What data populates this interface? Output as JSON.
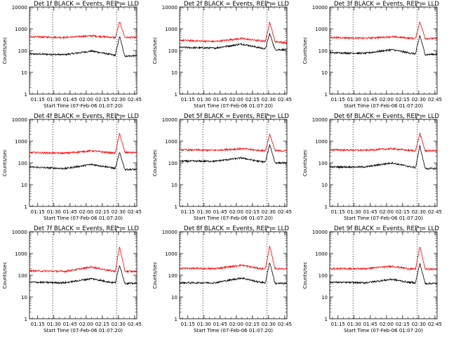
{
  "chart_data": [
    {
      "type": "line",
      "title": "Det 1f BLACK = Events, RED = LLD",
      "ylabel": "Counts/sec",
      "xlabel": "Start Time (07-Feb-06 01:07:20)",
      "x_ticks": [
        "01:15",
        "01:30",
        "01:45",
        "02:00",
        "02:15",
        "02:30",
        "02:45"
      ],
      "y_ticks": [
        "1",
        "10",
        "100",
        "1000",
        "10000"
      ],
      "y_scale": "log",
      "ylim": [
        1,
        10000
      ],
      "xlim": [
        "01:07:20",
        "02:47:00"
      ],
      "dotted_lines": [
        "01:29:00",
        "02:28:30"
      ],
      "marker_time": "02:30",
      "series": [
        {
          "name": "Events",
          "color": "#000000",
          "values": [
            {
              "t": "01:07",
              "v": 70
            },
            {
              "t": "01:40",
              "v": 65
            },
            {
              "t": "02:05",
              "v": 95
            },
            {
              "t": "02:20",
              "v": 70
            },
            {
              "t": "02:27",
              "v": 60
            },
            {
              "t": "02:31",
              "v": 450
            },
            {
              "t": "02:36",
              "v": 55
            },
            {
              "t": "02:46",
              "v": 58
            }
          ]
        },
        {
          "name": "LLD",
          "color": "#ff0000",
          "values": [
            {
              "t": "01:07",
              "v": 430
            },
            {
              "t": "01:40",
              "v": 400
            },
            {
              "t": "02:05",
              "v": 480
            },
            {
              "t": "02:20",
              "v": 420
            },
            {
              "t": "02:27",
              "v": 390
            },
            {
              "t": "02:31",
              "v": 2100
            },
            {
              "t": "02:36",
              "v": 400
            },
            {
              "t": "02:46",
              "v": 400
            }
          ]
        }
      ]
    },
    {
      "type": "line",
      "title": "Det 2f BLACK = Events, RED = LLD",
      "ylabel": "Counts/sec",
      "xlabel": "Start Time (07-Feb-06 01:07:20)",
      "x_ticks": [
        "01:15",
        "01:30",
        "01:45",
        "02:00",
        "02:15",
        "02:30",
        "02:45"
      ],
      "y_ticks": [
        "1",
        "10",
        "100",
        "1000",
        "10000"
      ],
      "y_scale": "log",
      "ylim": [
        1,
        10000
      ],
      "xlim": [
        "01:07:20",
        "02:47:00"
      ],
      "dotted_lines": [
        "01:29:00",
        "02:28:30"
      ],
      "marker_time": "02:30",
      "series": [
        {
          "name": "Events",
          "color": "#000000",
          "values": [
            {
              "t": "01:07",
              "v": 140
            },
            {
              "t": "01:40",
              "v": 130
            },
            {
              "t": "02:05",
              "v": 200
            },
            {
              "t": "02:20",
              "v": 140
            },
            {
              "t": "02:27",
              "v": 120
            },
            {
              "t": "02:31",
              "v": 600
            },
            {
              "t": "02:36",
              "v": 110
            },
            {
              "t": "02:46",
              "v": 110
            }
          ]
        },
        {
          "name": "LLD",
          "color": "#ff0000",
          "values": [
            {
              "t": "01:07",
              "v": 300
            },
            {
              "t": "01:40",
              "v": 260
            },
            {
              "t": "02:05",
              "v": 360
            },
            {
              "t": "02:20",
              "v": 290
            },
            {
              "t": "02:27",
              "v": 270
            },
            {
              "t": "02:31",
              "v": 2000
            },
            {
              "t": "02:36",
              "v": 260
            },
            {
              "t": "02:46",
              "v": 230
            }
          ]
        }
      ]
    },
    {
      "type": "line",
      "title": "Det 3f BLACK = Events, RED = LLD",
      "ylabel": "Counts/sec",
      "xlabel": "Start Time (07-Feb-06 01:07:20)",
      "x_ticks": [
        "01:15",
        "01:30",
        "01:45",
        "02:00",
        "02:15",
        "02:30",
        "02:45"
      ],
      "y_ticks": [
        "1",
        "10",
        "100",
        "1000",
        "10000"
      ],
      "y_scale": "log",
      "ylim": [
        1,
        10000
      ],
      "xlim": [
        "01:07:20",
        "02:47:00"
      ],
      "dotted_lines": [
        "01:29:00",
        "02:28:30"
      ],
      "marker_time": "02:30",
      "series": [
        {
          "name": "Events",
          "color": "#000000",
          "values": [
            {
              "t": "01:07",
              "v": 80
            },
            {
              "t": "01:40",
              "v": 75
            },
            {
              "t": "02:05",
              "v": 110
            },
            {
              "t": "02:20",
              "v": 80
            },
            {
              "t": "02:27",
              "v": 70
            },
            {
              "t": "02:31",
              "v": 500
            },
            {
              "t": "02:36",
              "v": 65
            },
            {
              "t": "02:46",
              "v": 68
            }
          ]
        },
        {
          "name": "LLD",
          "color": "#ff0000",
          "values": [
            {
              "t": "01:07",
              "v": 400
            },
            {
              "t": "01:40",
              "v": 370
            },
            {
              "t": "02:05",
              "v": 430
            },
            {
              "t": "02:20",
              "v": 380
            },
            {
              "t": "02:27",
              "v": 360
            },
            {
              "t": "02:31",
              "v": 2100
            },
            {
              "t": "02:36",
              "v": 360
            },
            {
              "t": "02:46",
              "v": 360
            }
          ]
        }
      ]
    },
    {
      "type": "line",
      "title": "Det 4f BLACK = Events, RED = LLD",
      "ylabel": "Counts/sec",
      "xlabel": "Start Time (07-Feb-06 01:07:20)",
      "x_ticks": [
        "01:15",
        "01:30",
        "01:45",
        "02:00",
        "02:15",
        "02:30",
        "02:45"
      ],
      "y_ticks": [
        "1",
        "10",
        "100",
        "1000",
        "10000"
      ],
      "y_scale": "log",
      "ylim": [
        1,
        10000
      ],
      "xlim": [
        "01:07:20",
        "02:47:00"
      ],
      "dotted_lines": [
        "01:29:00",
        "02:28:30"
      ],
      "marker_time": "02:30",
      "series": [
        {
          "name": "Events",
          "color": "#000000",
          "values": [
            {
              "t": "01:07",
              "v": 65
            },
            {
              "t": "01:40",
              "v": 55
            },
            {
              "t": "02:05",
              "v": 85
            },
            {
              "t": "02:20",
              "v": 65
            },
            {
              "t": "02:27",
              "v": 55
            },
            {
              "t": "02:31",
              "v": 300
            },
            {
              "t": "02:36",
              "v": 50
            },
            {
              "t": "02:46",
              "v": 50
            }
          ]
        },
        {
          "name": "LLD",
          "color": "#ff0000",
          "values": [
            {
              "t": "01:07",
              "v": 300
            },
            {
              "t": "01:40",
              "v": 280
            },
            {
              "t": "02:05",
              "v": 360
            },
            {
              "t": "02:20",
              "v": 300
            },
            {
              "t": "02:27",
              "v": 280
            },
            {
              "t": "02:31",
              "v": 2200
            },
            {
              "t": "02:36",
              "v": 300
            },
            {
              "t": "02:46",
              "v": 300
            }
          ]
        }
      ]
    },
    {
      "type": "line",
      "title": "Det 5f BLACK = Events, RED = LLD",
      "ylabel": "Counts/sec",
      "xlabel": "Start Time (07-Feb-06 01:07:20)",
      "x_ticks": [
        "01:15",
        "01:30",
        "01:45",
        "02:00",
        "02:15",
        "02:30",
        "02:45"
      ],
      "y_ticks": [
        "1",
        "10",
        "100",
        "1000",
        "10000"
      ],
      "y_scale": "log",
      "ylim": [
        1,
        10000
      ],
      "xlim": [
        "01:07:20",
        "02:47:00"
      ],
      "dotted_lines": [
        "01:29:00",
        "02:28:30"
      ],
      "marker_time": "02:30",
      "series": [
        {
          "name": "Events",
          "color": "#000000",
          "values": [
            {
              "t": "01:07",
              "v": 120
            },
            {
              "t": "01:40",
              "v": 120
            },
            {
              "t": "02:05",
              "v": 170
            },
            {
              "t": "02:20",
              "v": 120
            },
            {
              "t": "02:27",
              "v": 110
            },
            {
              "t": "02:31",
              "v": 700
            },
            {
              "t": "02:36",
              "v": 100
            },
            {
              "t": "02:46",
              "v": 100
            }
          ]
        },
        {
          "name": "LLD",
          "color": "#ff0000",
          "values": [
            {
              "t": "01:07",
              "v": 400
            },
            {
              "t": "01:40",
              "v": 380
            },
            {
              "t": "02:05",
              "v": 450
            },
            {
              "t": "02:20",
              "v": 380
            },
            {
              "t": "02:27",
              "v": 360
            },
            {
              "t": "02:31",
              "v": 2100
            },
            {
              "t": "02:36",
              "v": 360
            },
            {
              "t": "02:46",
              "v": 360
            }
          ]
        }
      ]
    },
    {
      "type": "line",
      "title": "Det 6f BLACK = Events, RED = LLD",
      "ylabel": "Counts/sec",
      "xlabel": "Start Time (07-Feb-06 01:07:20)",
      "x_ticks": [
        "01:15",
        "01:30",
        "01:45",
        "02:00",
        "02:15",
        "02:30",
        "02:45"
      ],
      "y_ticks": [
        "1",
        "10",
        "100",
        "1000",
        "10000"
      ],
      "y_scale": "log",
      "ylim": [
        1,
        10000
      ],
      "xlim": [
        "01:07:20",
        "02:47:00"
      ],
      "dotted_lines": [
        "01:29:00",
        "02:28:30"
      ],
      "marker_time": "02:30",
      "series": [
        {
          "name": "Events",
          "color": "#000000",
          "values": [
            {
              "t": "01:07",
              "v": 65
            },
            {
              "t": "01:40",
              "v": 65
            },
            {
              "t": "02:05",
              "v": 100
            },
            {
              "t": "02:20",
              "v": 70
            },
            {
              "t": "02:27",
              "v": 60
            },
            {
              "t": "02:31",
              "v": 600
            },
            {
              "t": "02:36",
              "v": 55
            },
            {
              "t": "02:46",
              "v": 55
            }
          ]
        },
        {
          "name": "LLD",
          "color": "#ff0000",
          "values": [
            {
              "t": "01:07",
              "v": 400
            },
            {
              "t": "01:40",
              "v": 380
            },
            {
              "t": "02:05",
              "v": 450
            },
            {
              "t": "02:20",
              "v": 380
            },
            {
              "t": "02:27",
              "v": 360
            },
            {
              "t": "02:31",
              "v": 2300
            },
            {
              "t": "02:36",
              "v": 360
            },
            {
              "t": "02:46",
              "v": 360
            }
          ]
        }
      ]
    },
    {
      "type": "line",
      "title": "Det 7f BLACK = Events, RED = LLD",
      "ylabel": "Counts/sec",
      "xlabel": "Start Time (07-Feb-06 01:07:20)",
      "x_ticks": [
        "01:15",
        "01:30",
        "01:45",
        "02:00",
        "02:15",
        "02:30",
        "02:45"
      ],
      "y_ticks": [
        "1",
        "10",
        "100",
        "1000",
        "10000"
      ],
      "y_scale": "log",
      "ylim": [
        1,
        10000
      ],
      "xlim": [
        "01:07:20",
        "02:47:00"
      ],
      "dotted_lines": [
        "01:29:00",
        "02:28:30"
      ],
      "marker_time": "02:30",
      "series": [
        {
          "name": "Events",
          "color": "#000000",
          "values": [
            {
              "t": "01:07",
              "v": 48
            },
            {
              "t": "01:40",
              "v": 45
            },
            {
              "t": "02:05",
              "v": 70
            },
            {
              "t": "02:20",
              "v": 50
            },
            {
              "t": "02:27",
              "v": 45
            },
            {
              "t": "02:31",
              "v": 300
            },
            {
              "t": "02:36",
              "v": 42
            },
            {
              "t": "02:46",
              "v": 42
            }
          ]
        },
        {
          "name": "LLD",
          "color": "#ff0000",
          "values": [
            {
              "t": "01:07",
              "v": 160
            },
            {
              "t": "01:40",
              "v": 150
            },
            {
              "t": "02:05",
              "v": 240
            },
            {
              "t": "02:20",
              "v": 170
            },
            {
              "t": "02:27",
              "v": 150
            },
            {
              "t": "02:31",
              "v": 2000
            },
            {
              "t": "02:36",
              "v": 150
            },
            {
              "t": "02:46",
              "v": 150
            }
          ]
        }
      ]
    },
    {
      "type": "line",
      "title": "Det 8f BLACK = Events, RED = LLD",
      "ylabel": "Counts/sec",
      "xlabel": "Start Time (07-Feb-06 01:07:20)",
      "x_ticks": [
        "01:15",
        "01:30",
        "01:45",
        "02:00",
        "02:15",
        "02:30",
        "02:45"
      ],
      "y_ticks": [
        "1",
        "10",
        "100",
        "1000",
        "10000"
      ],
      "y_scale": "log",
      "ylim": [
        1,
        10000
      ],
      "xlim": [
        "01:07:20",
        "02:47:00"
      ],
      "dotted_lines": [
        "01:29:00",
        "02:28:30"
      ],
      "marker_time": "02:30",
      "series": [
        {
          "name": "Events",
          "color": "#000000",
          "values": [
            {
              "t": "01:07",
              "v": 45
            },
            {
              "t": "01:40",
              "v": 45
            },
            {
              "t": "02:05",
              "v": 75
            },
            {
              "t": "02:20",
              "v": 50
            },
            {
              "t": "02:27",
              "v": 45
            },
            {
              "t": "02:31",
              "v": 400
            },
            {
              "t": "02:36",
              "v": 42
            },
            {
              "t": "02:46",
              "v": 42
            }
          ]
        },
        {
          "name": "LLD",
          "color": "#ff0000",
          "values": [
            {
              "t": "01:07",
              "v": 210
            },
            {
              "t": "01:40",
              "v": 200
            },
            {
              "t": "02:05",
              "v": 290
            },
            {
              "t": "02:20",
              "v": 210
            },
            {
              "t": "02:27",
              "v": 200
            },
            {
              "t": "02:31",
              "v": 2100
            },
            {
              "t": "02:36",
              "v": 200
            },
            {
              "t": "02:46",
              "v": 200
            }
          ]
        }
      ]
    },
    {
      "type": "line",
      "title": "Det 9f BLACK = Events, RED = LLD",
      "ylabel": "Counts/sec",
      "xlabel": "Start Time (07-Feb-06 01:07:20)",
      "x_ticks": [
        "01:15",
        "01:30",
        "01:45",
        "02:00",
        "02:15",
        "02:30",
        "02:45"
      ],
      "y_ticks": [
        "1",
        "10",
        "100",
        "1000",
        "10000"
      ],
      "y_scale": "log",
      "ylim": [
        1,
        10000
      ],
      "xlim": [
        "01:07:20",
        "02:47:00"
      ],
      "dotted_lines": [
        "01:29:00",
        "02:28:30"
      ],
      "marker_time": "02:30",
      "series": [
        {
          "name": "Events",
          "color": "#000000",
          "values": [
            {
              "t": "01:07",
              "v": 48
            },
            {
              "t": "01:40",
              "v": 45
            },
            {
              "t": "02:05",
              "v": 65
            },
            {
              "t": "02:20",
              "v": 48
            },
            {
              "t": "02:27",
              "v": 45
            },
            {
              "t": "02:31",
              "v": 350
            },
            {
              "t": "02:36",
              "v": 42
            },
            {
              "t": "02:46",
              "v": 42
            }
          ]
        },
        {
          "name": "LLD",
          "color": "#ff0000",
          "values": [
            {
              "t": "01:07",
              "v": 200
            },
            {
              "t": "01:40",
              "v": 200
            },
            {
              "t": "02:05",
              "v": 260
            },
            {
              "t": "02:20",
              "v": 200
            },
            {
              "t": "02:27",
              "v": 190
            },
            {
              "t": "02:31",
              "v": 2100
            },
            {
              "t": "02:36",
              "v": 190
            },
            {
              "t": "02:46",
              "v": 190
            }
          ]
        }
      ]
    }
  ]
}
